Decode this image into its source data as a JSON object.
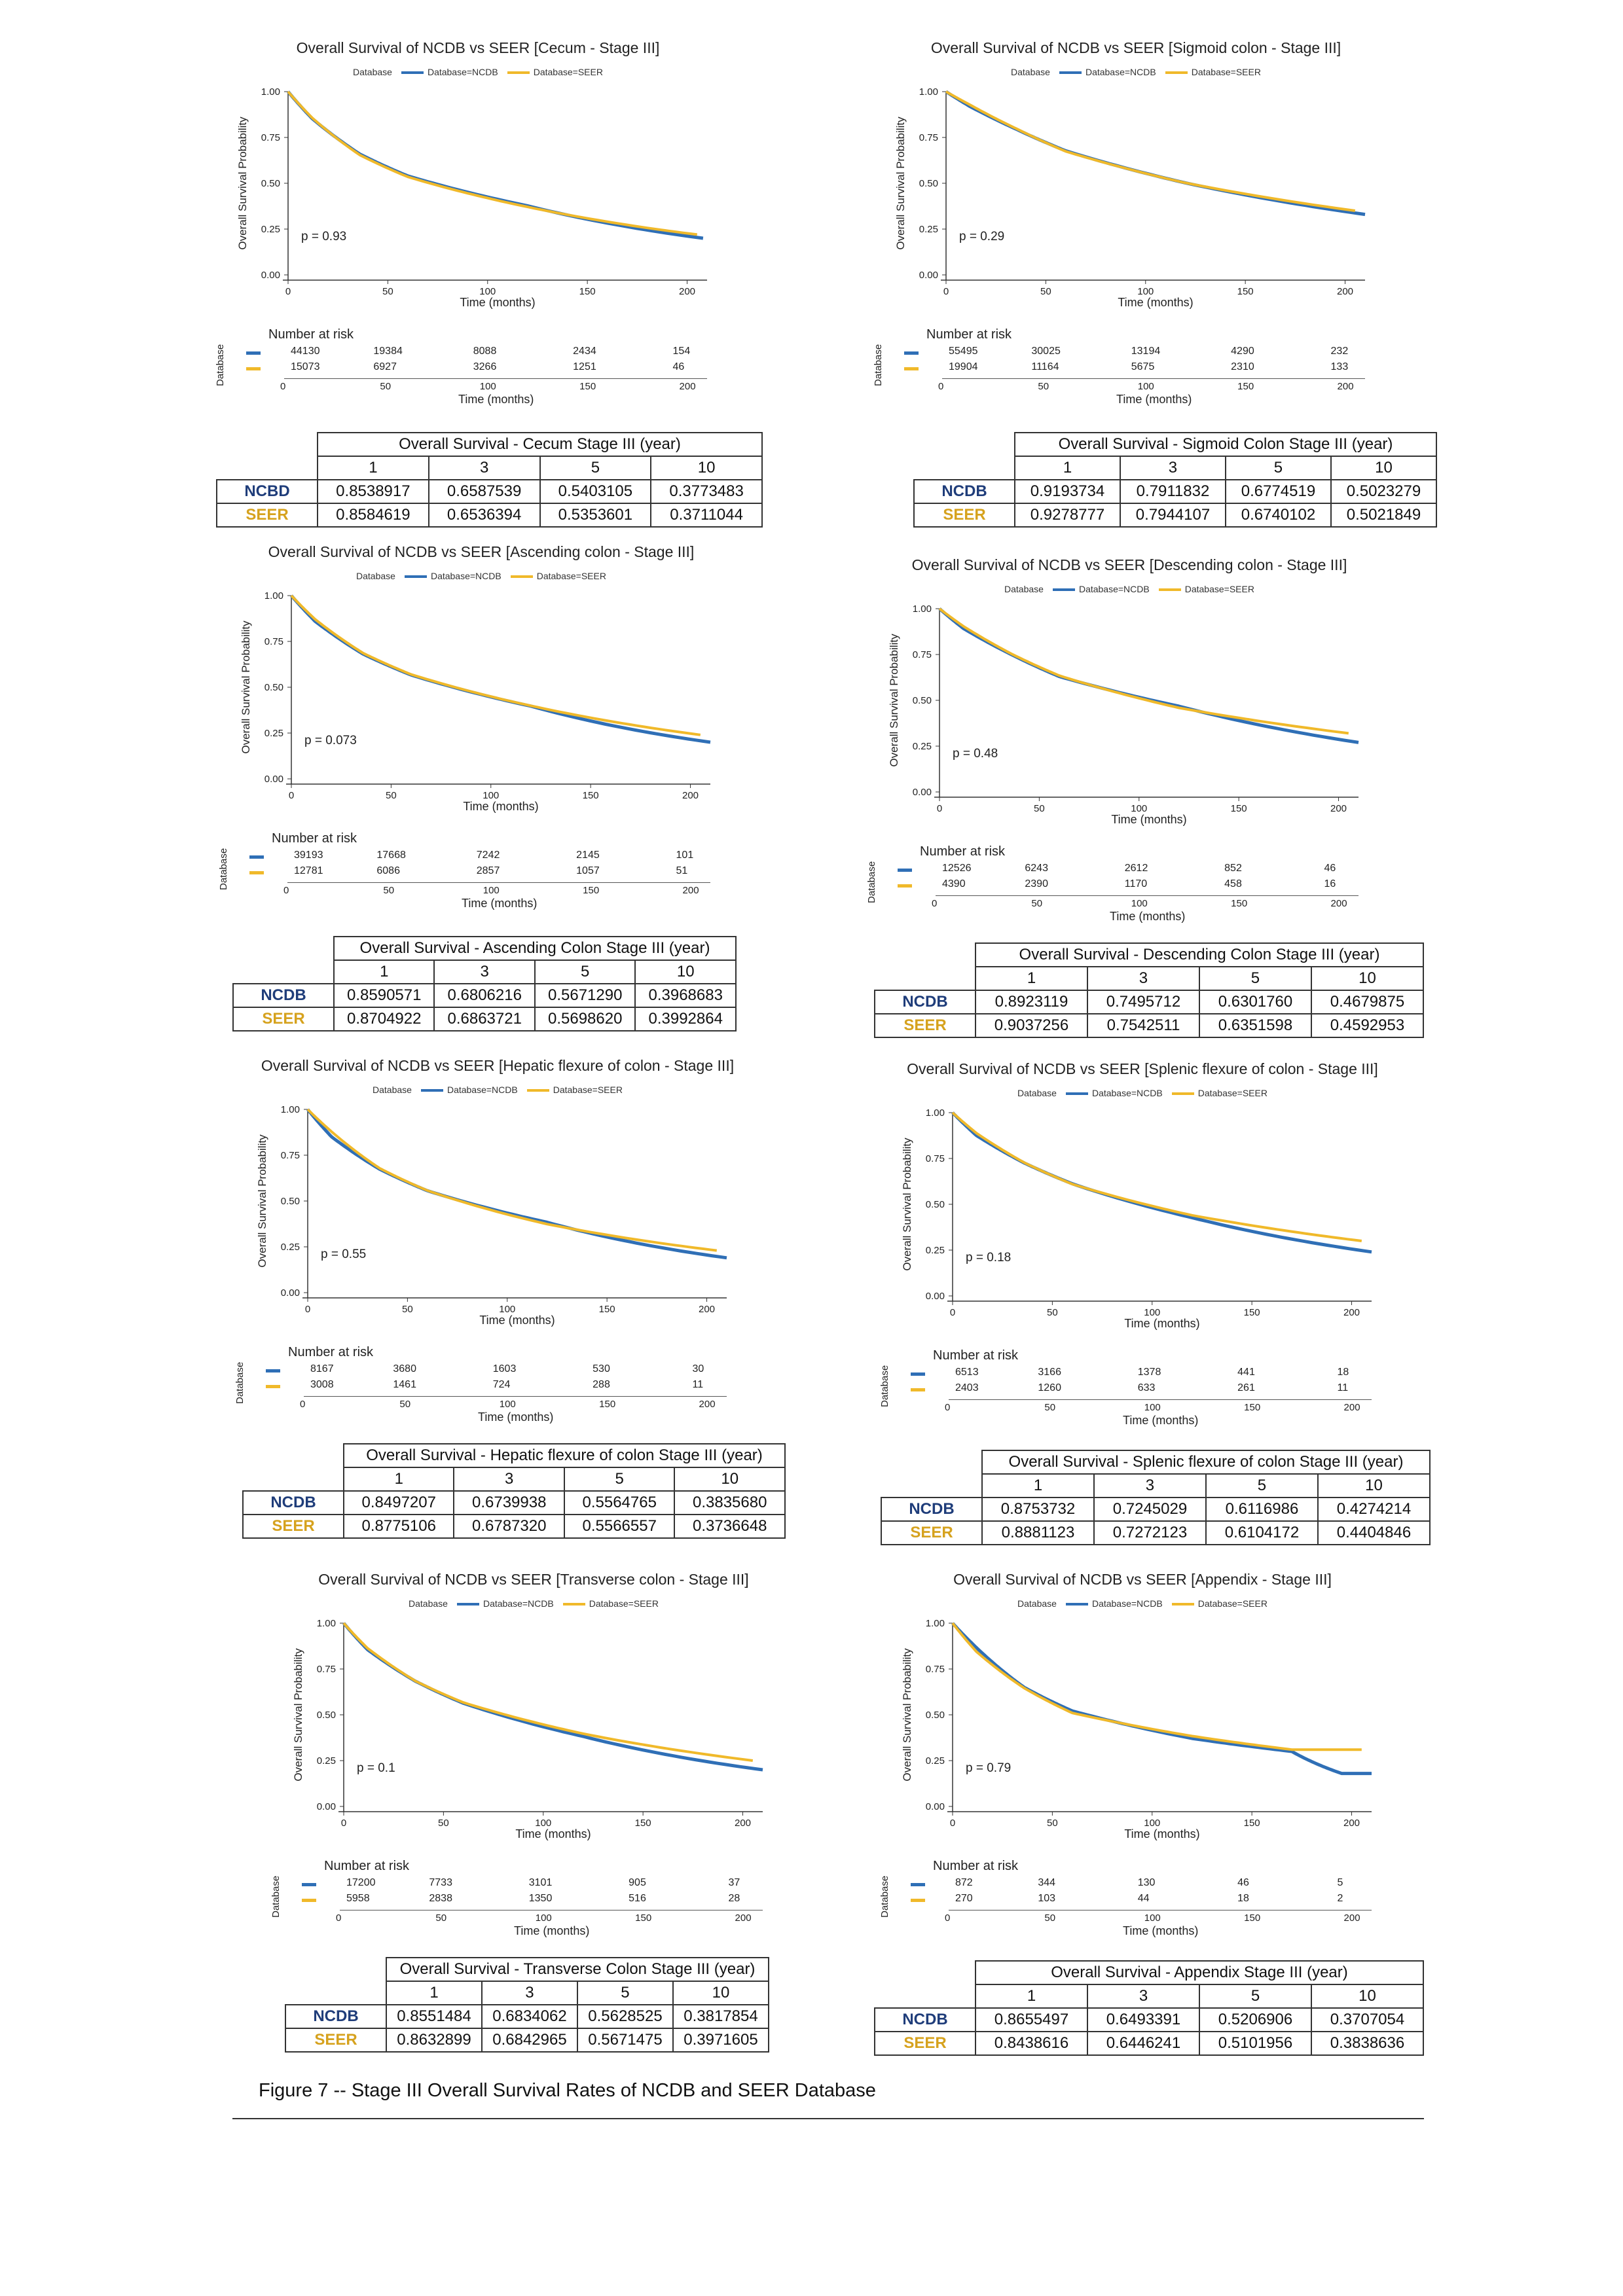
{
  "caption": "Figure 7 -- Stage III Overall Survival Rates of NCDB and SEER Database",
  "legend": {
    "title": "Database",
    "ncdb": "Database=NCDB",
    "seer": "Database=SEER"
  },
  "colors": {
    "ncdb": "#2f6fb6",
    "seer": "#f0b92a"
  },
  "axis": {
    "ylabel": "Overall Survival Probability",
    "xlabel": "Time (months)",
    "yticks": [
      "0.00",
      "0.25",
      "0.50",
      "0.75",
      "1.00"
    ],
    "xticks": [
      "0",
      "50",
      "100",
      "150",
      "200"
    ]
  },
  "risk_labels": {
    "title": "Number at risk",
    "db": "Database"
  },
  "table_labels": {
    "years": [
      "1",
      "3",
      "5",
      "10"
    ]
  },
  "panels": [
    {
      "title": "Overall Survival of NCDB vs SEER [Cecum - Stage III]",
      "p": "p = 0.93",
      "risk": {
        "ncdb": [
          "44130",
          "19384",
          "8088",
          "2434",
          "154"
        ],
        "seer": [
          "15073",
          "6927",
          "3266",
          "1251",
          "46"
        ]
      },
      "table": {
        "title": "Overall Survival - Cecum Stage III (year)",
        "ncdb_label": "NCBD",
        "seer_label": "SEER",
        "ncdb": [
          "0.8538917",
          "0.6587539",
          "0.5403105",
          "0.3773483"
        ],
        "seer": [
          "0.8584619",
          "0.6536394",
          "0.5353601",
          "0.3711044"
        ]
      }
    },
    {
      "title": "Overall Survival of NCDB vs SEER [Sigmoid colon - Stage III]",
      "p": "p = 0.29",
      "risk": {
        "ncdb": [
          "55495",
          "30025",
          "13194",
          "4290",
          "232"
        ],
        "seer": [
          "19904",
          "11164",
          "5675",
          "2310",
          "133"
        ]
      },
      "table": {
        "title": "Overall Survival - Sigmoid Colon Stage III (year)",
        "ncdb_label": "NCDB",
        "seer_label": "SEER",
        "ncdb": [
          "0.9193734",
          "0.7911832",
          "0.6774519",
          "0.5023279"
        ],
        "seer": [
          "0.9278777",
          "0.7944107",
          "0.6740102",
          "0.5021849"
        ]
      }
    },
    {
      "title": "Overall Survival of NCDB vs SEER [Ascending colon - Stage III]",
      "p": "p = 0.073",
      "risk": {
        "ncdb": [
          "39193",
          "17668",
          "7242",
          "2145",
          "101"
        ],
        "seer": [
          "12781",
          "6086",
          "2857",
          "1057",
          "51"
        ]
      },
      "table": {
        "title": "Overall Survival - Ascending Colon Stage III (year)",
        "ncdb_label": "NCDB",
        "seer_label": "SEER",
        "ncdb": [
          "0.8590571",
          "0.6806216",
          "0.5671290",
          "0.3968683"
        ],
        "seer": [
          "0.8704922",
          "0.6863721",
          "0.5698620",
          "0.3992864"
        ]
      }
    },
    {
      "title": "Overall Survival of NCDB vs SEER [Descending colon - Stage III]",
      "p": "p = 0.48",
      "risk": {
        "ncdb": [
          "12526",
          "6243",
          "2612",
          "852",
          "46"
        ],
        "seer": [
          "4390",
          "2390",
          "1170",
          "458",
          "16"
        ]
      },
      "table": {
        "title": "Overall Survival - Descending Colon Stage III (year)",
        "ncdb_label": "NCDB",
        "seer_label": "SEER",
        "ncdb": [
          "0.8923119",
          "0.7495712",
          "0.6301760",
          "0.4679875"
        ],
        "seer": [
          "0.9037256",
          "0.7542511",
          "0.6351598",
          "0.4592953"
        ]
      }
    },
    {
      "title": "Overall Survival of NCDB vs SEER [Hepatic flexure of colon - Stage III]",
      "p": "p = 0.55",
      "risk": {
        "ncdb": [
          "8167",
          "3680",
          "1603",
          "530",
          "30"
        ],
        "seer": [
          "3008",
          "1461",
          "724",
          "288",
          "11"
        ]
      },
      "table": {
        "title": "Overall Survival - Hepatic flexure of colon  Stage III (year)",
        "ncdb_label": "NCDB",
        "seer_label": "SEER",
        "ncdb": [
          "0.8497207",
          "0.6739938",
          "0.5564765",
          "0.3835680"
        ],
        "seer": [
          "0.8775106",
          "0.6787320",
          "0.5566557",
          "0.3736648"
        ]
      }
    },
    {
      "title": "Overall Survival of NCDB vs SEER [Splenic flexure of colon - Stage III]",
      "p": "p = 0.18",
      "risk": {
        "ncdb": [
          "6513",
          "3166",
          "1378",
          "441",
          "18"
        ],
        "seer": [
          "2403",
          "1260",
          "633",
          "261",
          "11"
        ]
      },
      "table": {
        "title": "Overall Survival - Splenic flexure of colon  Stage III (year)",
        "ncdb_label": "NCDB",
        "seer_label": "SEER",
        "ncdb": [
          "0.8753732",
          "0.7245029",
          "0.6116986",
          "0.4274214"
        ],
        "seer": [
          "0.8881123",
          "0.7272123",
          "0.6104172",
          "0.4404846"
        ]
      }
    },
    {
      "title": "Overall Survival of NCDB vs SEER [Transverse colon - Stage III]",
      "p": "p = 0.1",
      "risk": {
        "ncdb": [
          "17200",
          "7733",
          "3101",
          "905",
          "37"
        ],
        "seer": [
          "5958",
          "2838",
          "1350",
          "516",
          "28"
        ]
      },
      "table": {
        "title": "Overall Survival - Transverse Colon Stage III (year)",
        "ncdb_label": "NCDB",
        "seer_label": "SEER",
        "ncdb": [
          "0.8551484",
          "0.6834062",
          "0.5628525",
          "0.3817854"
        ],
        "seer": [
          "0.8632899",
          "0.6842965",
          "0.5671475",
          "0.3971605"
        ]
      }
    },
    {
      "title": "Overall Survival of NCDB vs SEER [Appendix - Stage III]",
      "p": "p = 0.79",
      "risk": {
        "ncdb": [
          "872",
          "344",
          "130",
          "46",
          "5"
        ],
        "seer": [
          "270",
          "103",
          "44",
          "18",
          "2"
        ]
      },
      "table": {
        "title": "Overall Survival - Appendix Stage III (year)",
        "ncdb_label": "NCDB",
        "seer_label": "SEER",
        "ncdb": [
          "0.8655497",
          "0.6493391",
          "0.5206906",
          "0.3707054"
        ],
        "seer": [
          "0.8438616",
          "0.6446241",
          "0.5101956",
          "0.3838636"
        ]
      }
    }
  ],
  "chart_data": [
    {
      "type": "line",
      "title": "Overall Survival of NCDB vs SEER [Cecum - Stage III]",
      "xlabel": "Time (months)",
      "ylabel": "Overall Survival Probability",
      "xlim": [
        0,
        210
      ],
      "ylim": [
        0,
        1
      ],
      "series": [
        {
          "name": "Database=NCDB",
          "x": [
            0,
            12,
            36,
            60,
            120,
            208
          ],
          "y": [
            1.0,
            0.854,
            0.659,
            0.54,
            0.377,
            0.2
          ]
        },
        {
          "name": "Database=SEER",
          "x": [
            0,
            12,
            36,
            60,
            120,
            205
          ],
          "y": [
            1.0,
            0.858,
            0.654,
            0.535,
            0.371,
            0.22
          ]
        }
      ]
    },
    {
      "type": "line",
      "title": "Overall Survival of NCDB vs SEER [Sigmoid colon - Stage III]",
      "xlabel": "Time (months)",
      "ylabel": "Overall Survival Probability",
      "xlim": [
        0,
        210
      ],
      "ylim": [
        0,
        1
      ],
      "series": [
        {
          "name": "Database=NCDB",
          "x": [
            0,
            12,
            36,
            60,
            120,
            210
          ],
          "y": [
            1.0,
            0.919,
            0.791,
            0.677,
            0.502,
            0.33
          ]
        },
        {
          "name": "Database=SEER",
          "x": [
            0,
            12,
            36,
            60,
            120,
            205
          ],
          "y": [
            1.0,
            0.928,
            0.794,
            0.674,
            0.502,
            0.35
          ]
        }
      ]
    },
    {
      "type": "line",
      "title": "Overall Survival of NCDB vs SEER [Ascending colon - Stage III]",
      "xlabel": "Time (months)",
      "ylabel": "Overall Survival Probability",
      "xlim": [
        0,
        210
      ],
      "ylim": [
        0,
        1
      ],
      "series": [
        {
          "name": "Database=NCDB",
          "x": [
            0,
            12,
            36,
            60,
            120,
            210
          ],
          "y": [
            1.0,
            0.859,
            0.681,
            0.567,
            0.397,
            0.2
          ]
        },
        {
          "name": "Database=SEER",
          "x": [
            0,
            12,
            36,
            60,
            120,
            205
          ],
          "y": [
            1.0,
            0.87,
            0.686,
            0.57,
            0.399,
            0.24
          ]
        }
      ]
    },
    {
      "type": "line",
      "title": "Overall Survival of NCDB vs SEER [Descending colon - Stage III]",
      "xlabel": "Time (months)",
      "ylabel": "Overall Survival Probability",
      "xlim": [
        0,
        210
      ],
      "ylim": [
        0,
        1
      ],
      "series": [
        {
          "name": "Database=NCDB",
          "x": [
            0,
            12,
            36,
            60,
            120,
            210
          ],
          "y": [
            1.0,
            0.892,
            0.75,
            0.63,
            0.468,
            0.27
          ]
        },
        {
          "name": "Database=SEER",
          "x": [
            0,
            12,
            36,
            60,
            120,
            205
          ],
          "y": [
            1.0,
            0.904,
            0.754,
            0.635,
            0.459,
            0.32
          ]
        }
      ]
    },
    {
      "type": "line",
      "title": "Overall Survival of NCDB vs SEER [Hepatic flexure of colon - Stage III]",
      "xlabel": "Time (months)",
      "ylabel": "Overall Survival Probability",
      "xlim": [
        0,
        210
      ],
      "ylim": [
        0,
        1
      ],
      "series": [
        {
          "name": "Database=NCDB",
          "x": [
            0,
            12,
            36,
            60,
            120,
            210
          ],
          "y": [
            1.0,
            0.85,
            0.674,
            0.556,
            0.384,
            0.19
          ]
        },
        {
          "name": "Database=SEER",
          "x": [
            0,
            12,
            36,
            60,
            120,
            205
          ],
          "y": [
            1.0,
            0.878,
            0.679,
            0.557,
            0.374,
            0.23
          ]
        }
      ]
    },
    {
      "type": "line",
      "title": "Overall Survival of NCDB vs SEER [Splenic flexure of colon - Stage III]",
      "xlabel": "Time (months)",
      "ylabel": "Overall Survival Probability",
      "xlim": [
        0,
        210
      ],
      "ylim": [
        0,
        1
      ],
      "series": [
        {
          "name": "Database=NCDB",
          "x": [
            0,
            12,
            36,
            60,
            120,
            210
          ],
          "y": [
            1.0,
            0.875,
            0.725,
            0.612,
            0.427,
            0.24
          ]
        },
        {
          "name": "Database=SEER",
          "x": [
            0,
            12,
            36,
            60,
            120,
            205
          ],
          "y": [
            1.0,
            0.888,
            0.727,
            0.61,
            0.44,
            0.3
          ]
        }
      ]
    },
    {
      "type": "line",
      "title": "Overall Survival of NCDB vs SEER [Transverse colon - Stage III]",
      "xlabel": "Time (months)",
      "ylabel": "Overall Survival Probability",
      "xlim": [
        0,
        210
      ],
      "ylim": [
        0,
        1
      ],
      "series": [
        {
          "name": "Database=NCDB",
          "x": [
            0,
            12,
            36,
            60,
            120,
            210
          ],
          "y": [
            1.0,
            0.855,
            0.683,
            0.563,
            0.382,
            0.2
          ]
        },
        {
          "name": "Database=SEER",
          "x": [
            0,
            12,
            36,
            60,
            120,
            205
          ],
          "y": [
            1.0,
            0.863,
            0.684,
            0.567,
            0.397,
            0.25
          ]
        }
      ]
    },
    {
      "type": "line",
      "title": "Overall Survival of NCDB vs SEER [Appendix - Stage III]",
      "xlabel": "Time (months)",
      "ylabel": "Overall Survival Probability",
      "xlim": [
        0,
        210
      ],
      "ylim": [
        0,
        1
      ],
      "series": [
        {
          "name": "Database=NCDB",
          "x": [
            0,
            12,
            36,
            60,
            120,
            170,
            195,
            210
          ],
          "y": [
            1.0,
            0.866,
            0.649,
            0.521,
            0.371,
            0.3,
            0.18,
            0.18
          ]
        },
        {
          "name": "Database=SEER",
          "x": [
            0,
            12,
            36,
            60,
            120,
            170,
            205
          ],
          "y": [
            1.0,
            0.844,
            0.645,
            0.51,
            0.384,
            0.31,
            0.31
          ]
        }
      ]
    }
  ]
}
